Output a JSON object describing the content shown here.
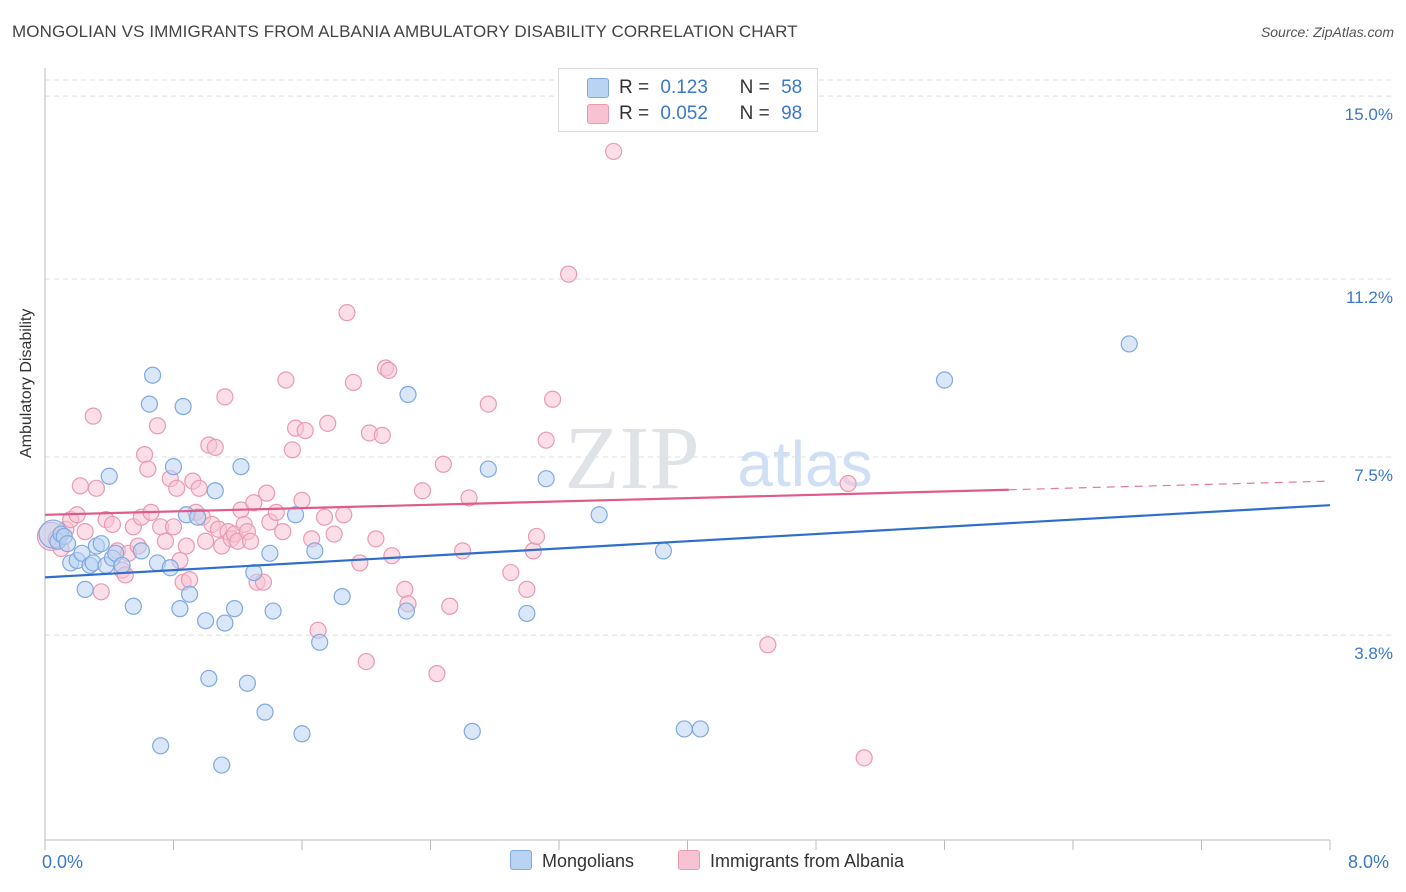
{
  "title": "MONGOLIAN VS IMMIGRANTS FROM ALBANIA AMBULATORY DISABILITY CORRELATION CHART",
  "source": "Source: ZipAtlas.com",
  "watermark": {
    "zip": "ZIP",
    "atlas": "atlas"
  },
  "legend": {
    "r_label": "R =",
    "n_label": "N =",
    "rows": [
      {
        "r": "0.123",
        "n": "58"
      },
      {
        "r": "0.052",
        "n": "98"
      }
    ]
  },
  "colors": {
    "blue_fill": "#b9d3f2",
    "blue_stroke": "#7fa9e0",
    "blue_line": "#2f6fcb",
    "pink_fill": "#f8c2d3",
    "pink_stroke": "#e99ab3",
    "pink_line": "#e05a8a",
    "tick_text": "#3a78c9",
    "grid": "#dddddd"
  },
  "chart_data": {
    "type": "scatter",
    "title": "MONGOLIAN VS IMMIGRANTS FROM ALBANIA AMBULATORY DISABILITY CORRELATION CHART",
    "xlabel": "",
    "ylabel": "Ambulatory Disability",
    "xlim": [
      0,
      8
    ],
    "ylim": [
      0,
      15.5
    ],
    "x_tick_labels": [
      {
        "value": 0,
        "label": "0.0%"
      },
      {
        "value": 8,
        "label": "8.0%"
      }
    ],
    "y_ticks": [
      {
        "value": 3.8,
        "label": "3.8%"
      },
      {
        "value": 7.5,
        "label": "7.5%"
      },
      {
        "value": 11.2,
        "label": "11.2%"
      },
      {
        "value": 15.0,
        "label": "15.0%"
      }
    ],
    "legend_position": "bottom-center",
    "series": [
      {
        "name": "Mongolians",
        "color": "#b9d3f2",
        "points": [
          [
            0.05,
            5.9
          ],
          [
            0.08,
            5.75
          ],
          [
            0.1,
            5.9
          ],
          [
            0.12,
            5.85
          ],
          [
            0.14,
            5.7
          ],
          [
            0.16,
            5.3
          ],
          [
            0.2,
            5.35
          ],
          [
            0.23,
            5.5
          ],
          [
            0.25,
            4.75
          ],
          [
            0.28,
            5.25
          ],
          [
            0.3,
            5.3
          ],
          [
            0.32,
            5.65
          ],
          [
            0.35,
            5.7
          ],
          [
            0.38,
            5.25
          ],
          [
            0.4,
            7.1
          ],
          [
            0.42,
            5.4
          ],
          [
            0.44,
            5.5
          ],
          [
            0.48,
            5.25
          ],
          [
            0.55,
            4.4
          ],
          [
            0.6,
            5.55
          ],
          [
            0.65,
            8.6
          ],
          [
            0.67,
            9.2
          ],
          [
            0.7,
            5.3
          ],
          [
            0.72,
            1.5
          ],
          [
            0.78,
            5.2
          ],
          [
            0.8,
            7.3
          ],
          [
            0.84,
            4.35
          ],
          [
            0.86,
            8.55
          ],
          [
            0.88,
            6.3
          ],
          [
            0.9,
            4.65
          ],
          [
            0.95,
            6.25
          ],
          [
            1.0,
            4.1
          ],
          [
            1.02,
            2.9
          ],
          [
            1.06,
            6.8
          ],
          [
            1.1,
            1.1
          ],
          [
            1.12,
            4.05
          ],
          [
            1.18,
            4.35
          ],
          [
            1.22,
            7.3
          ],
          [
            1.26,
            2.8
          ],
          [
            1.3,
            5.1
          ],
          [
            1.37,
            2.2
          ],
          [
            1.4,
            5.5
          ],
          [
            1.42,
            4.3
          ],
          [
            1.56,
            6.3
          ],
          [
            1.6,
            1.75
          ],
          [
            1.68,
            5.55
          ],
          [
            1.71,
            3.65
          ],
          [
            1.85,
            4.6
          ],
          [
            2.26,
            8.8
          ],
          [
            2.25,
            4.3
          ],
          [
            2.66,
            1.8
          ],
          [
            2.76,
            7.25
          ],
          [
            3.0,
            4.25
          ],
          [
            3.12,
            7.05
          ],
          [
            3.45,
            6.3
          ],
          [
            3.85,
            5.55
          ],
          [
            3.98,
            1.85
          ],
          [
            4.08,
            1.85
          ],
          [
            5.6,
            9.1
          ],
          [
            6.75,
            9.85
          ]
        ]
      },
      {
        "name": "Immigrants from Albania",
        "color": "#f8c2d3",
        "points": [
          [
            0.04,
            5.85
          ],
          [
            0.07,
            5.8
          ],
          [
            0.1,
            5.6
          ],
          [
            0.13,
            6.0
          ],
          [
            0.16,
            6.2
          ],
          [
            0.2,
            6.3
          ],
          [
            0.22,
            6.9
          ],
          [
            0.25,
            5.95
          ],
          [
            0.3,
            8.35
          ],
          [
            0.32,
            6.85
          ],
          [
            0.35,
            4.7
          ],
          [
            0.38,
            6.2
          ],
          [
            0.42,
            6.1
          ],
          [
            0.45,
            5.55
          ],
          [
            0.48,
            5.15
          ],
          [
            0.5,
            5.05
          ],
          [
            0.52,
            5.5
          ],
          [
            0.55,
            6.05
          ],
          [
            0.58,
            5.65
          ],
          [
            0.6,
            6.25
          ],
          [
            0.62,
            7.55
          ],
          [
            0.64,
            7.25
          ],
          [
            0.66,
            6.35
          ],
          [
            0.7,
            8.15
          ],
          [
            0.72,
            6.05
          ],
          [
            0.75,
            5.75
          ],
          [
            0.78,
            7.05
          ],
          [
            0.8,
            6.05
          ],
          [
            0.82,
            6.85
          ],
          [
            0.84,
            5.35
          ],
          [
            0.86,
            4.9
          ],
          [
            0.88,
            5.65
          ],
          [
            0.9,
            4.95
          ],
          [
            0.92,
            7.0
          ],
          [
            0.94,
            6.35
          ],
          [
            0.96,
            6.85
          ],
          [
            0.98,
            6.25
          ],
          [
            1.0,
            5.75
          ],
          [
            1.02,
            7.75
          ],
          [
            1.04,
            6.1
          ],
          [
            1.06,
            7.7
          ],
          [
            1.08,
            6.0
          ],
          [
            1.1,
            5.65
          ],
          [
            1.12,
            8.75
          ],
          [
            1.14,
            5.95
          ],
          [
            1.16,
            5.8
          ],
          [
            1.18,
            5.9
          ],
          [
            1.2,
            5.75
          ],
          [
            1.22,
            6.4
          ],
          [
            1.24,
            6.1
          ],
          [
            1.26,
            5.95
          ],
          [
            1.28,
            5.75
          ],
          [
            1.3,
            6.55
          ],
          [
            1.32,
            4.9
          ],
          [
            1.36,
            4.9
          ],
          [
            1.38,
            6.75
          ],
          [
            1.4,
            6.15
          ],
          [
            1.44,
            6.35
          ],
          [
            1.48,
            5.95
          ],
          [
            1.5,
            9.1
          ],
          [
            1.54,
            7.65
          ],
          [
            1.56,
            8.1
          ],
          [
            1.6,
            6.6
          ],
          [
            1.62,
            8.05
          ],
          [
            1.66,
            5.8
          ],
          [
            1.7,
            3.9
          ],
          [
            1.74,
            6.25
          ],
          [
            1.76,
            8.2
          ],
          [
            1.8,
            5.9
          ],
          [
            1.86,
            6.3
          ],
          [
            1.88,
            10.5
          ],
          [
            1.92,
            9.05
          ],
          [
            1.96,
            5.3
          ],
          [
            2.0,
            3.25
          ],
          [
            2.02,
            8.0
          ],
          [
            2.06,
            5.8
          ],
          [
            2.1,
            7.95
          ],
          [
            2.12,
            9.35
          ],
          [
            2.14,
            9.3
          ],
          [
            2.16,
            5.45
          ],
          [
            2.24,
            4.75
          ],
          [
            2.26,
            4.45
          ],
          [
            2.35,
            6.8
          ],
          [
            2.44,
            3.0
          ],
          [
            2.48,
            7.35
          ],
          [
            2.52,
            4.4
          ],
          [
            2.6,
            5.55
          ],
          [
            2.64,
            6.65
          ],
          [
            2.76,
            8.6
          ],
          [
            2.9,
            5.1
          ],
          [
            3.0,
            4.75
          ],
          [
            3.04,
            5.55
          ],
          [
            3.06,
            5.85
          ],
          [
            3.12,
            7.85
          ],
          [
            3.16,
            8.7
          ],
          [
            3.26,
            11.3
          ],
          [
            3.54,
            13.85
          ],
          [
            4.5,
            3.6
          ],
          [
            5.0,
            6.95
          ],
          [
            5.1,
            1.25
          ]
        ]
      }
    ],
    "trend_lines": [
      {
        "series": "Mongolians",
        "x": [
          0,
          8
        ],
        "y": [
          5.0,
          6.5
        ],
        "style": "solid"
      },
      {
        "series": "Immigrants from Albania",
        "x": [
          0,
          6.0
        ],
        "y": [
          6.3,
          6.82
        ],
        "style": "solid"
      },
      {
        "series": "Immigrants from Albania",
        "x": [
          6.0,
          8.0
        ],
        "y": [
          6.82,
          7.0
        ],
        "style": "dashed"
      }
    ]
  }
}
